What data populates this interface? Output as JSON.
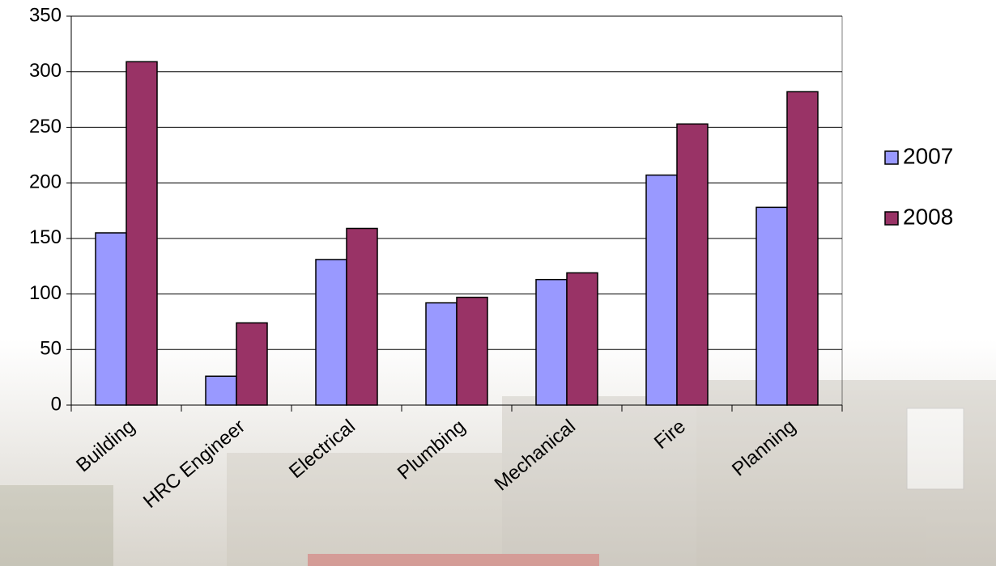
{
  "chart_data": {
    "type": "bar",
    "categories": [
      "Building",
      "HRC Engineer",
      "Electrical",
      "Plumbing",
      "Mechanical",
      "Fire",
      "Planning"
    ],
    "series": [
      {
        "name": "2007",
        "color": "#9999ff",
        "values": [
          155,
          26,
          131,
          92,
          113,
          207,
          178
        ]
      },
      {
        "name": "2008",
        "color": "#993366",
        "values": [
          309,
          74,
          159,
          97,
          119,
          253,
          282
        ]
      }
    ],
    "ylim": [
      0,
      350
    ],
    "yticks": [
      0,
      50,
      100,
      150,
      200,
      250,
      300,
      350
    ],
    "grid": true,
    "legend": "right"
  }
}
